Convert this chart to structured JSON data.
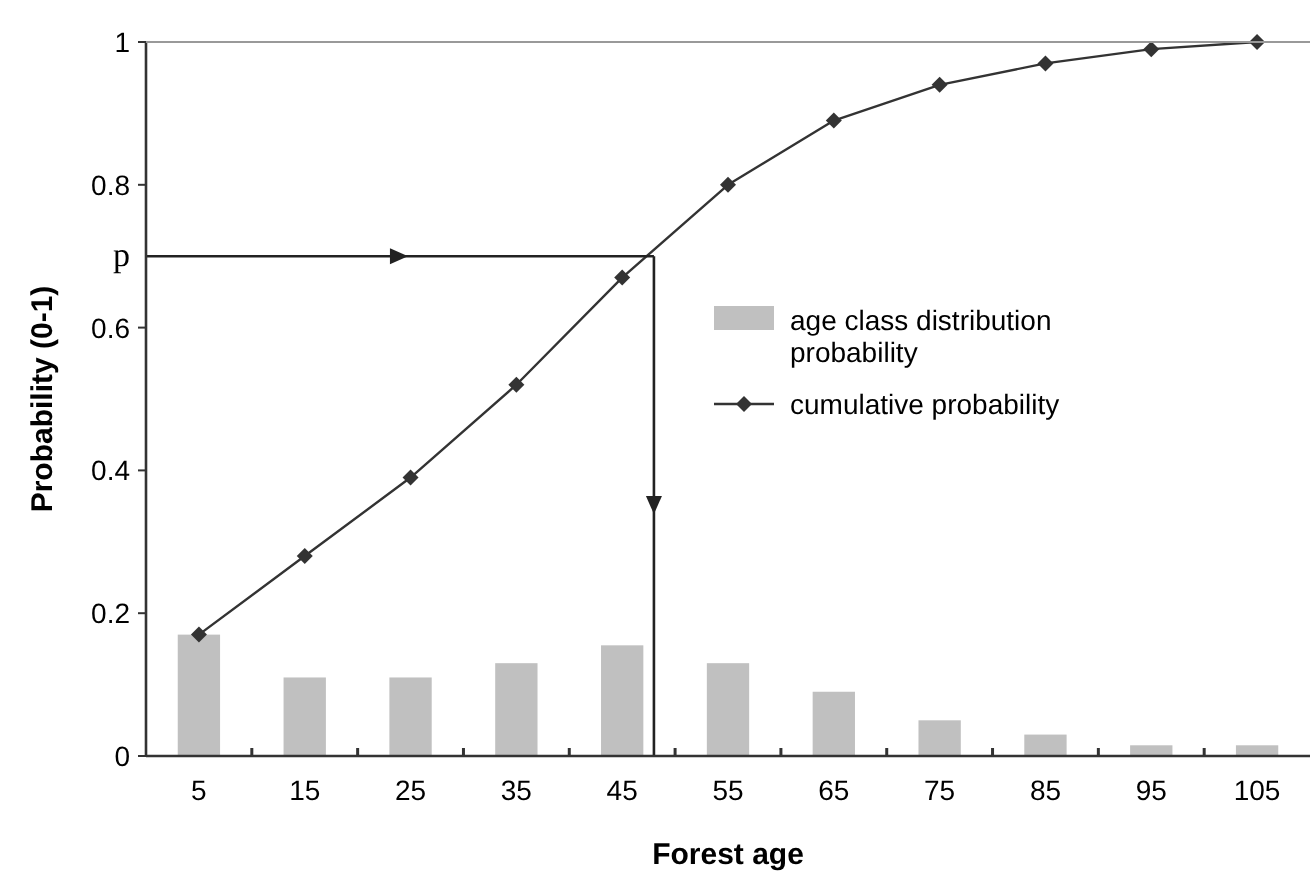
{
  "chart_data": {
    "type": "bar",
    "xlabel": "Forest age",
    "ylabel": "Probability (0-1)",
    "x": [
      5,
      15,
      25,
      35,
      45,
      55,
      65,
      75,
      85,
      95,
      105
    ],
    "series": [
      {
        "name": "age class distribution probability",
        "color": "#c0c0c0",
        "values": [
          0.17,
          0.11,
          0.11,
          0.13,
          0.155,
          0.13,
          0.09,
          0.05,
          0.03,
          0.015,
          0.015
        ]
      },
      {
        "name": "cumulative probability",
        "type": "line",
        "color": "#333333",
        "marker": "diamond",
        "values": [
          0.17,
          0.28,
          0.39,
          0.52,
          0.67,
          0.8,
          0.89,
          0.94,
          0.97,
          0.99,
          1.0
        ]
      }
    ],
    "xlim": [
      0,
      110
    ],
    "xticks": [
      5,
      {
        "value": 10,
        "label": null
      },
      15,
      {
        "value": 20,
        "label": null
      },
      25,
      {
        "value": 30,
        "label": null
      },
      35,
      {
        "value": 40,
        "label": null
      },
      45,
      {
        "value": 50,
        "label": null
      },
      55,
      {
        "value": 60,
        "label": null
      },
      65,
      {
        "value": 70,
        "label": null
      },
      75,
      {
        "value": 80,
        "label": null
      },
      85,
      {
        "value": 90,
        "label": null
      },
      95,
      {
        "value": 100,
        "label": null
      },
      105
    ],
    "ylim": [
      0,
      1
    ],
    "yticks": [
      0,
      0.2,
      0.4,
      0.6,
      0.8,
      1
    ],
    "ref_lines": [
      {
        "axis": "y",
        "value": 0.7,
        "label": "p"
      },
      {
        "axis": "x",
        "value": 48
      }
    ],
    "legend": "right",
    "grid": false
  }
}
